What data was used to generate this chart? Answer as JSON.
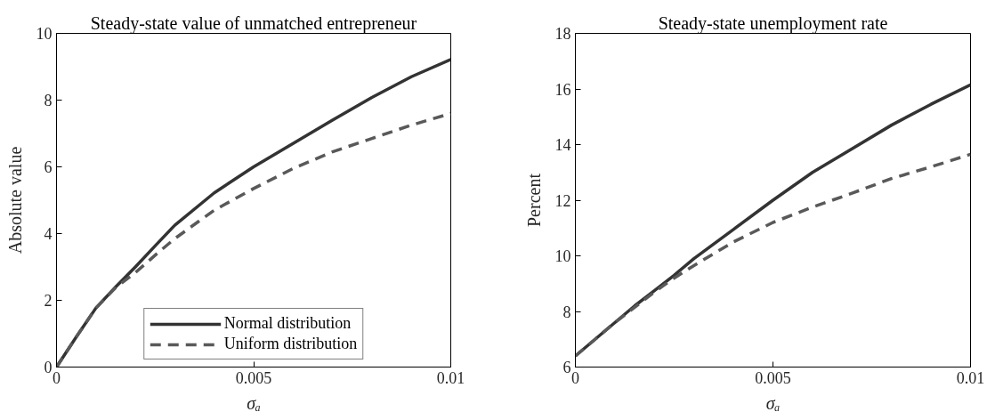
{
  "chart_data": [
    {
      "type": "line",
      "title": "Steady-state value of unmatched entrepreneur",
      "xlabel": "σₐ",
      "ylabel": "Absolute value",
      "xlim": [
        0,
        0.01
      ],
      "xticks": [
        0,
        0.005,
        0.01
      ],
      "ylim": [
        0,
        10
      ],
      "yticks": [
        0,
        2,
        4,
        6,
        8,
        10
      ],
      "legend": "bottom",
      "x": [
        0,
        0.0005,
        0.001,
        0.0015,
        0.002,
        0.0025,
        0.003,
        0.004,
        0.005,
        0.006,
        0.007,
        0.008,
        0.009,
        0.01
      ],
      "series": [
        {
          "name": "Normal distribution",
          "color": "#333333",
          "line_style": "solid",
          "values": [
            0,
            0.9,
            1.77,
            2.4,
            3.0,
            3.63,
            4.25,
            5.22,
            6.0,
            6.7,
            7.4,
            8.08,
            8.7,
            9.22
          ]
        },
        {
          "name": "Uniform distribution",
          "color": "#595959",
          "line_style": "dashed",
          "values": [
            0,
            0.9,
            1.77,
            2.38,
            2.83,
            3.35,
            3.85,
            4.7,
            5.35,
            5.95,
            6.45,
            6.85,
            7.25,
            7.6
          ]
        }
      ]
    },
    {
      "type": "line",
      "title": "Steady-state unemployment rate",
      "xlabel": "σₐ",
      "ylabel": "Percent",
      "xlim": [
        0,
        0.01
      ],
      "xticks": [
        0,
        0.005,
        0.01
      ],
      "ylim": [
        6,
        18
      ],
      "yticks": [
        6,
        8,
        10,
        12,
        14,
        16,
        18
      ],
      "x": [
        0,
        0.0005,
        0.001,
        0.0015,
        0.002,
        0.0025,
        0.003,
        0.004,
        0.005,
        0.006,
        0.007,
        0.008,
        0.009,
        0.01
      ],
      "series": [
        {
          "color": "#333333",
          "line_style": "solid",
          "values": [
            6.4,
            7.0,
            7.6,
            8.2,
            8.75,
            9.3,
            9.9,
            10.95,
            12.0,
            13.0,
            13.85,
            14.7,
            15.45,
            16.15
          ]
        },
        {
          "color": "#595959",
          "line_style": "dashed",
          "values": [
            6.4,
            7.0,
            7.6,
            8.15,
            8.7,
            9.2,
            9.65,
            10.5,
            11.2,
            11.75,
            12.25,
            12.78,
            13.2,
            13.65
          ]
        }
      ]
    }
  ]
}
